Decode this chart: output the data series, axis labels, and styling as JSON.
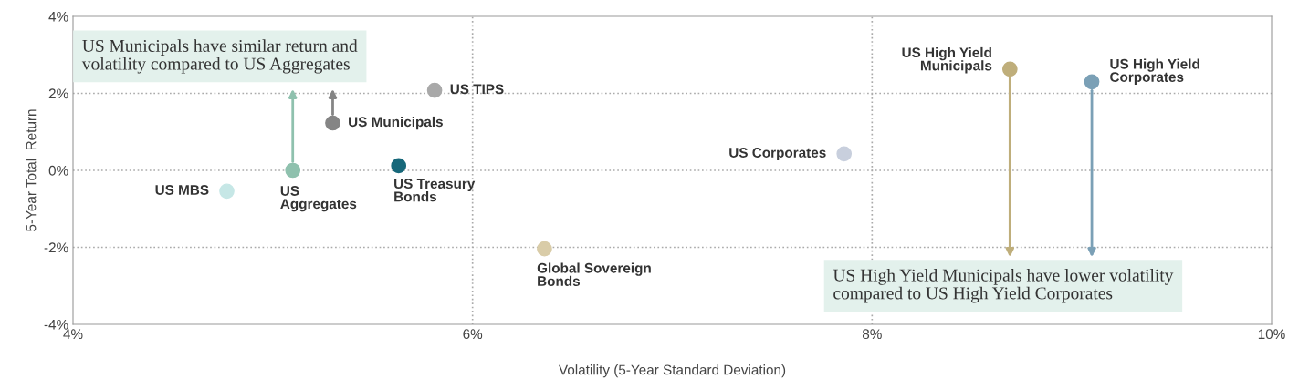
{
  "chart_data": {
    "type": "scatter",
    "xlabel": "Volatility (5-Year Standard Deviation)",
    "ylabel": "5-Year Total  Return",
    "xlim": [
      4,
      10
    ],
    "xticks": [
      {
        "value": 4,
        "label": "4%"
      },
      {
        "value": 6,
        "label": "6%"
      },
      {
        "value": 8,
        "label": "8%"
      },
      {
        "value": 10,
        "label": "10%"
      }
    ],
    "ylim": [
      -4,
      4
    ],
    "yticks": [
      {
        "value": -4,
        "label": "-4%"
      },
      {
        "value": -2,
        "label": "-2%"
      },
      {
        "value": 0,
        "label": "0%"
      },
      {
        "value": 2,
        "label": "2%"
      },
      {
        "value": 4,
        "label": "4%"
      }
    ],
    "grid": true,
    "marker": "circle",
    "series": [
      {
        "name": "US MBS",
        "color": "#c6e7e6",
        "x": [
          4.77
        ],
        "values": [
          -0.54
        ]
      },
      {
        "name": "US\nAggregates",
        "color": "#8fc1ae",
        "x": [
          5.1
        ],
        "values": [
          0.0
        ]
      },
      {
        "name": "US Municipals",
        "color": "#858585",
        "x": [
          5.3
        ],
        "values": [
          1.23
        ]
      },
      {
        "name": "US TIPS",
        "color": "#a9a9a9",
        "x": [
          5.81
        ],
        "values": [
          2.08
        ]
      },
      {
        "name": "US Treasury\nBonds",
        "color": "#17687a",
        "x": [
          5.63
        ],
        "values": [
          0.12
        ]
      },
      {
        "name": "Global Sovereign\nBonds",
        "color": "#d9cca8",
        "x": [
          6.36
        ],
        "values": [
          -2.04
        ]
      },
      {
        "name": "US Corporates",
        "color": "#c8cfdd",
        "x": [
          7.86
        ],
        "values": [
          0.43
        ]
      },
      {
        "name": "US High Yield\nMunicipals",
        "color": "#bfae7b",
        "x": [
          8.69
        ],
        "values": [
          2.63
        ]
      },
      {
        "name": "US High Yield\nCorporates",
        "color": "#7ba0b6",
        "x": [
          9.1
        ],
        "values": [
          2.3
        ]
      }
    ],
    "annotations": [
      "US Municipals have similar return and\nvolatility compared to US Aggregates",
      "US High Yield Municipals have lower volatility\ncompared to US High Yield Corporates"
    ]
  }
}
